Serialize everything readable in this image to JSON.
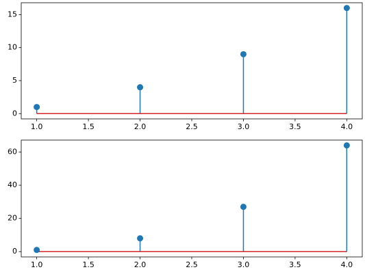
{
  "chart_data": [
    {
      "type": "stem",
      "x": [
        1,
        2,
        3,
        4
      ],
      "values": [
        1,
        4,
        9,
        16
      ],
      "color": "#1f77b4",
      "baseline": 0,
      "baseline_color": "#d62728",
      "xlim": [
        0.85,
        4.15
      ],
      "xticks": [
        {
          "value": 1,
          "label": "1.0"
        },
        {
          "value": 1.5,
          "label": "1.5"
        },
        {
          "value": 2,
          "label": "2.0"
        },
        {
          "value": 2.5,
          "label": "2.5"
        },
        {
          "value": 3,
          "label": "3.0"
        },
        {
          "value": 3.5,
          "label": "3.5"
        },
        {
          "value": 4,
          "label": "4.0"
        }
      ],
      "ylim": [
        -0.8,
        16.8
      ],
      "yticks": [
        0,
        5,
        10,
        15
      ]
    },
    {
      "type": "stem",
      "x": [
        1,
        2,
        3,
        4
      ],
      "values": [
        1,
        8,
        27,
        64
      ],
      "color": "#1f77b4",
      "baseline": 0,
      "baseline_color": "#d62728",
      "xlim": [
        0.85,
        4.15
      ],
      "xticks": [
        {
          "value": 1,
          "label": "1.0"
        },
        {
          "value": 1.5,
          "label": "1.5"
        },
        {
          "value": 2,
          "label": "2.0"
        },
        {
          "value": 2.5,
          "label": "2.5"
        },
        {
          "value": 3,
          "label": "3.0"
        },
        {
          "value": 3.5,
          "label": "3.5"
        },
        {
          "value": 4,
          "label": "4.0"
        }
      ],
      "ylim": [
        -3.2,
        67.2
      ],
      "yticks": [
        0,
        20,
        40,
        60
      ]
    }
  ]
}
